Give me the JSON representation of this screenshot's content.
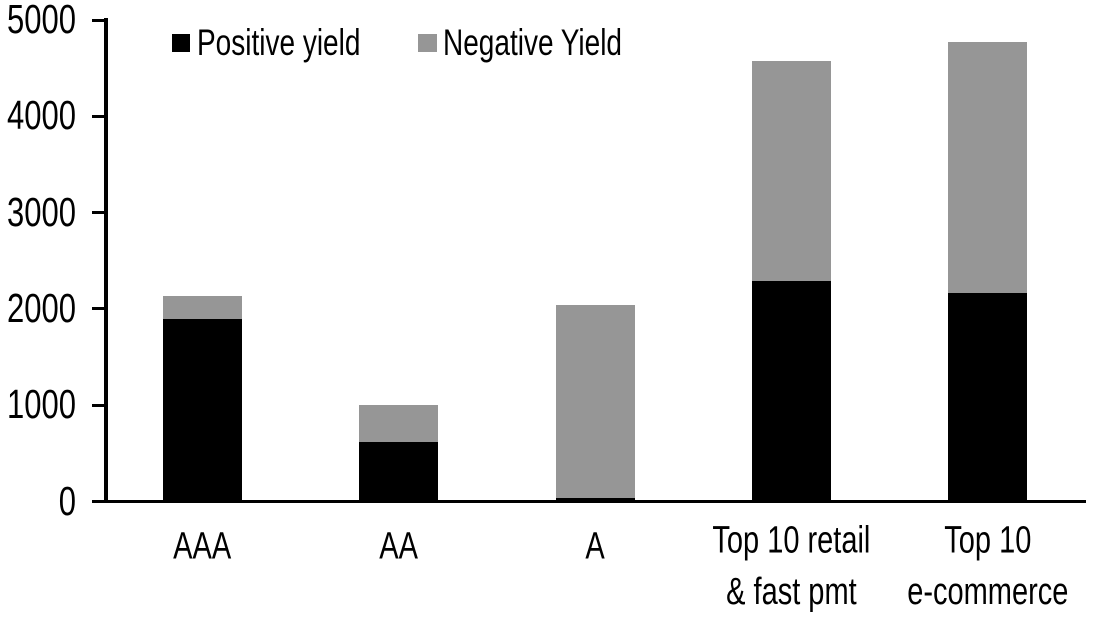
{
  "chart_data": {
    "type": "bar",
    "stacked": true,
    "title": "",
    "xlabel": "",
    "ylabel": "",
    "categories": [
      "AAA",
      "AA",
      "A",
      "Top 10 retail & fast pmt",
      "Top 10 e-commerce"
    ],
    "category_display_lines": [
      [
        "AAA"
      ],
      [
        "AA"
      ],
      [
        "A"
      ],
      [
        "Top 10 retail",
        "& fast pmt"
      ],
      [
        "Top 10",
        "e-commerce"
      ]
    ],
    "series": [
      {
        "name": "Positive yield",
        "color": "#000000",
        "values": [
          1890,
          620,
          40,
          2290,
          2160
        ]
      },
      {
        "name": "Negative Yield",
        "color": "#969696",
        "values": [
          240,
          380,
          2000,
          2280,
          2610
        ]
      }
    ],
    "stack_totals": [
      2130,
      1000,
      2040,
      4570,
      4770
    ],
    "ylim": [
      0,
      5000
    ],
    "yticks": [
      0,
      1000,
      2000,
      3000,
      4000,
      5000
    ],
    "grid": false,
    "legend_position": "top-left-inside",
    "axis_color": "#000000",
    "background_color": "#ffffff"
  }
}
